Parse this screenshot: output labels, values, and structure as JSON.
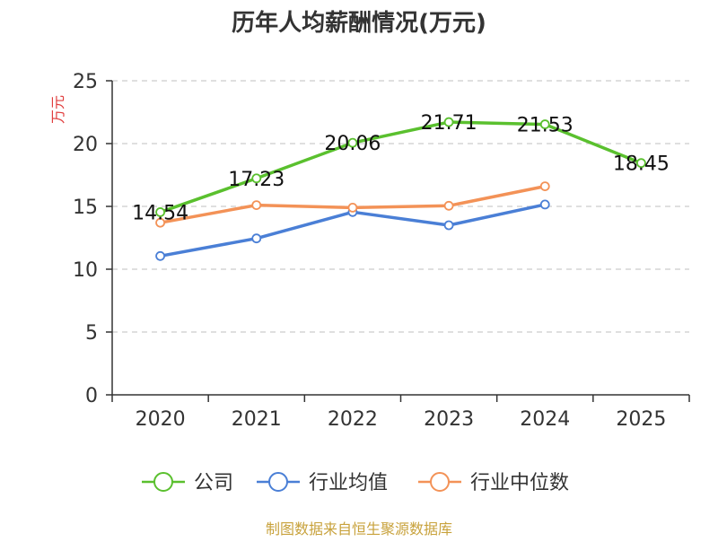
{
  "chart_data": {
    "type": "line",
    "title": "历年人均薪酬情况(万元)",
    "xlabel": "",
    "ylabel": "万元",
    "categories": [
      "2020",
      "2021",
      "2022",
      "2023",
      "2024",
      "2025"
    ],
    "ylim": [
      0,
      25
    ],
    "yticks": [
      0,
      5,
      10,
      15,
      20,
      25
    ],
    "grid": true,
    "legend_position": "bottom",
    "series": [
      {
        "name": "公司",
        "color": "#5ac02e",
        "values": [
          14.54,
          17.23,
          20.06,
          21.71,
          21.53,
          18.45
        ],
        "labels": [
          "14.54",
          "17.23",
          "20.06",
          "21.71",
          "21.53",
          "18.45"
        ]
      },
      {
        "name": "行业均值",
        "color": "#4a7fd6",
        "values": [
          11.05,
          12.45,
          14.55,
          13.5,
          15.15,
          null
        ]
      },
      {
        "name": "行业中位数",
        "color": "#f39257",
        "values": [
          13.7,
          15.1,
          14.9,
          15.05,
          16.6,
          null
        ]
      }
    ],
    "source": "制图数据来自恒生聚源数据库"
  }
}
